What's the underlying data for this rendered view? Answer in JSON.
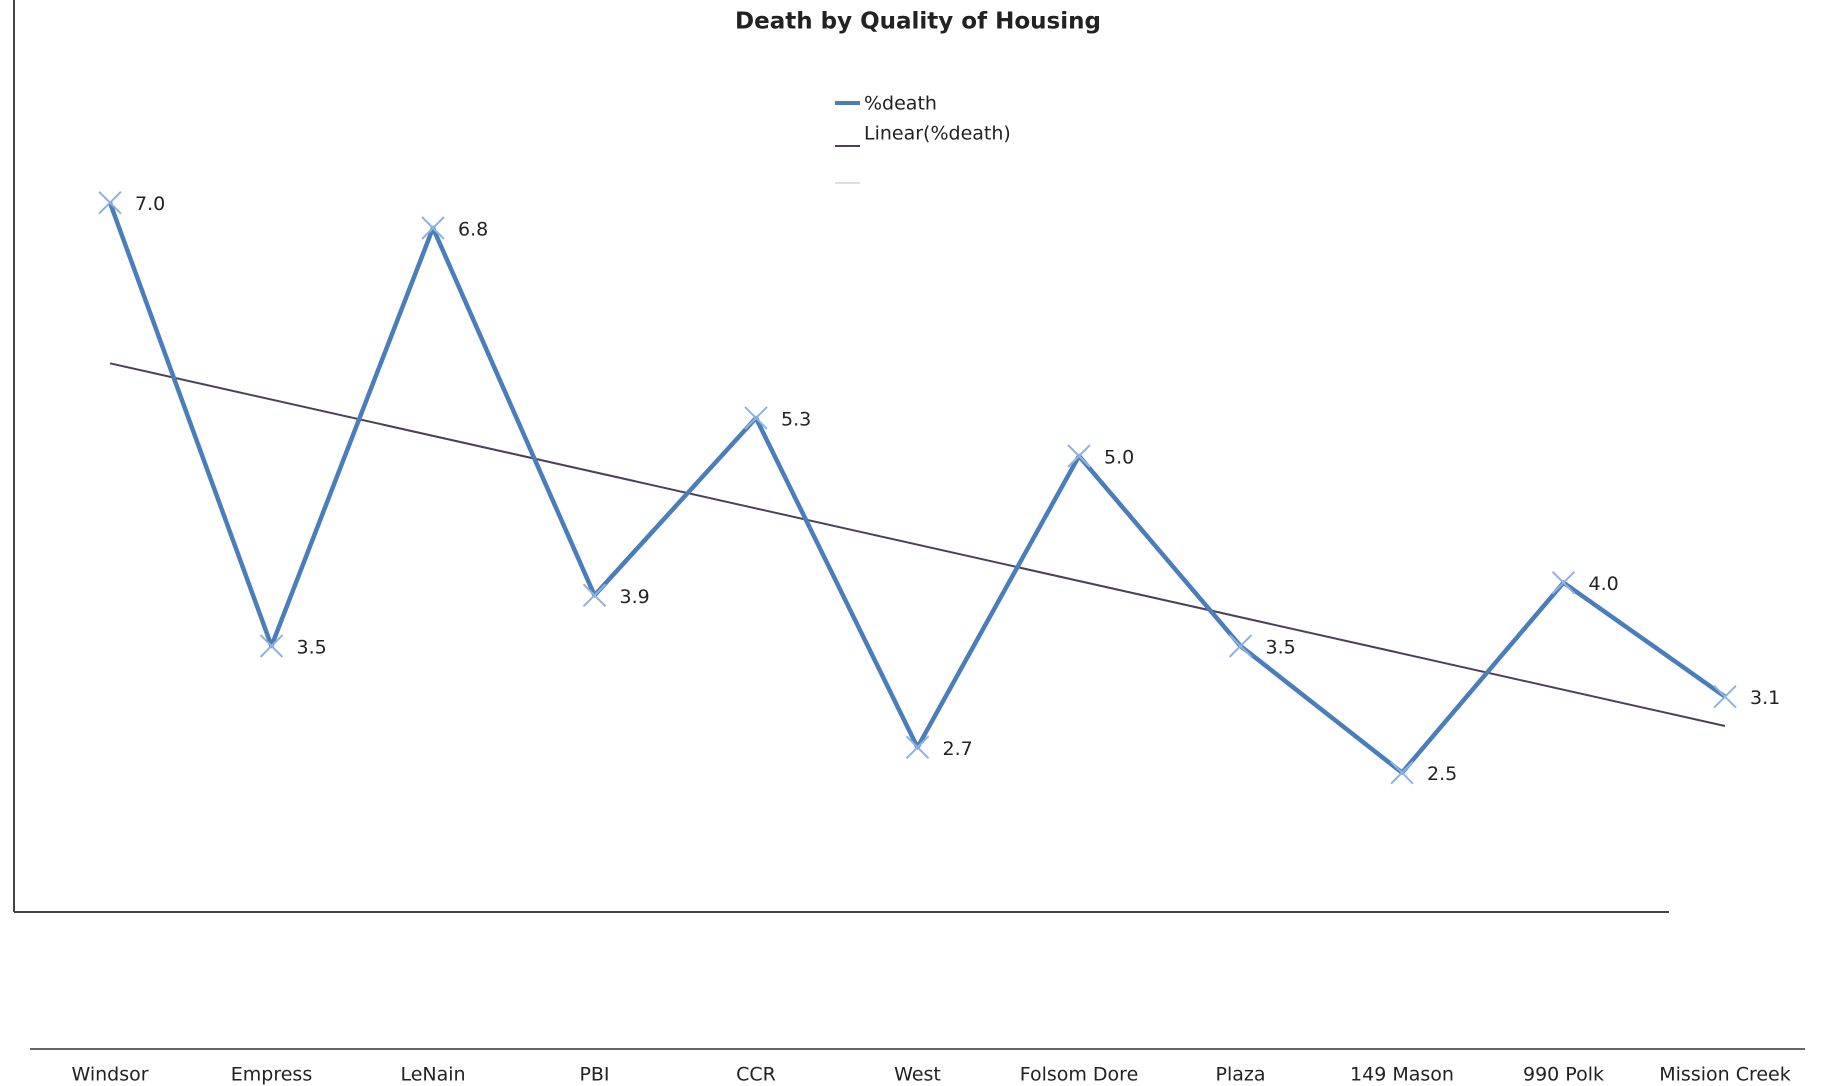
{
  "chart_data": {
    "type": "line",
    "title": "Death by Quality of Housing",
    "categories": [
      "Windsor",
      "Empress",
      "LeNain",
      "PBI",
      "CCR",
      "West",
      "Folsom Dore",
      "Plaza",
      "149 Mason",
      "990 Polk",
      "Mission Creek"
    ],
    "series": [
      {
        "name": "%death",
        "color": "#4a7ebb",
        "values": [
          7.0,
          3.5,
          6.8,
          3.9,
          5.3,
          2.7,
          5.0,
          3.5,
          2.5,
          4.0,
          3.1
        ],
        "value_labels": [
          "7.0",
          "3.5",
          "6.8",
          "3.9",
          "5.3",
          "2.7",
          "5.0",
          "3.5",
          "2.5",
          "4.0",
          "3.1"
        ]
      }
    ],
    "trendline": {
      "name": "Linear(%death)",
      "color": "#4b3f5c"
    },
    "ylim": [
      1.4,
      8.6
    ]
  }
}
